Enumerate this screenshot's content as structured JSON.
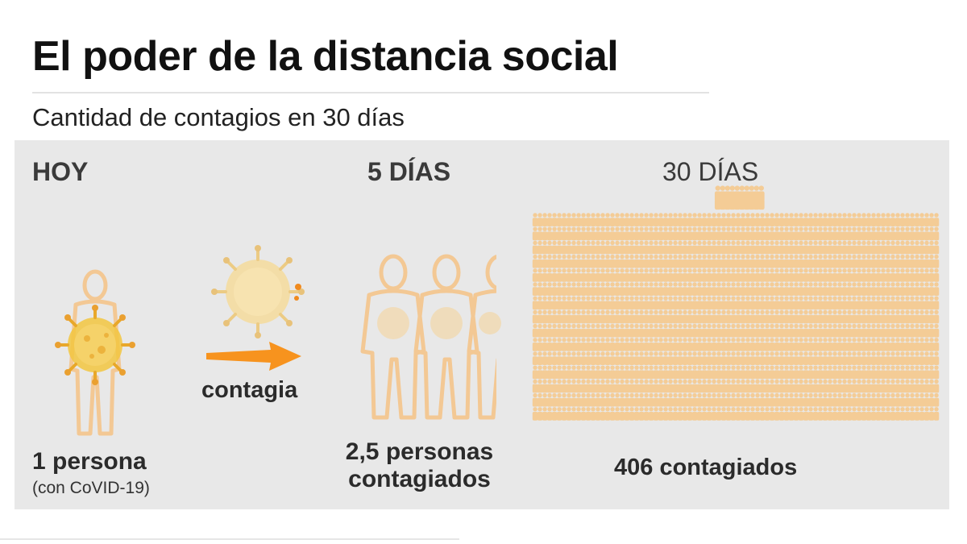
{
  "title": "El poder de la distancia social",
  "subtitle": "Cantidad de contagios en 30 días",
  "headings": {
    "today": "HOY",
    "five_days": "5 DÍAS",
    "thirty_days": "30 DÍAS"
  },
  "labels": {
    "one_person": "1 persona",
    "with_covid": "(con CoVID-19)",
    "infects": "contagia",
    "two_half": "2,5 personas contagiados",
    "four_oh_six": "406 contagiados"
  },
  "values": {
    "persons_today": 1,
    "persons_5_days": 2.5,
    "persons_30_days": 406
  },
  "icons": {
    "person": "person-outline-icon",
    "virus": "coronavirus-icon",
    "arrow": "arrow-right-icon"
  },
  "colors": {
    "person_outline": "#f3c894",
    "virus": "#f0c23c",
    "arrow": "#f7931e",
    "crowd": "#f4cc96",
    "panel": "#e8e8e8"
  }
}
